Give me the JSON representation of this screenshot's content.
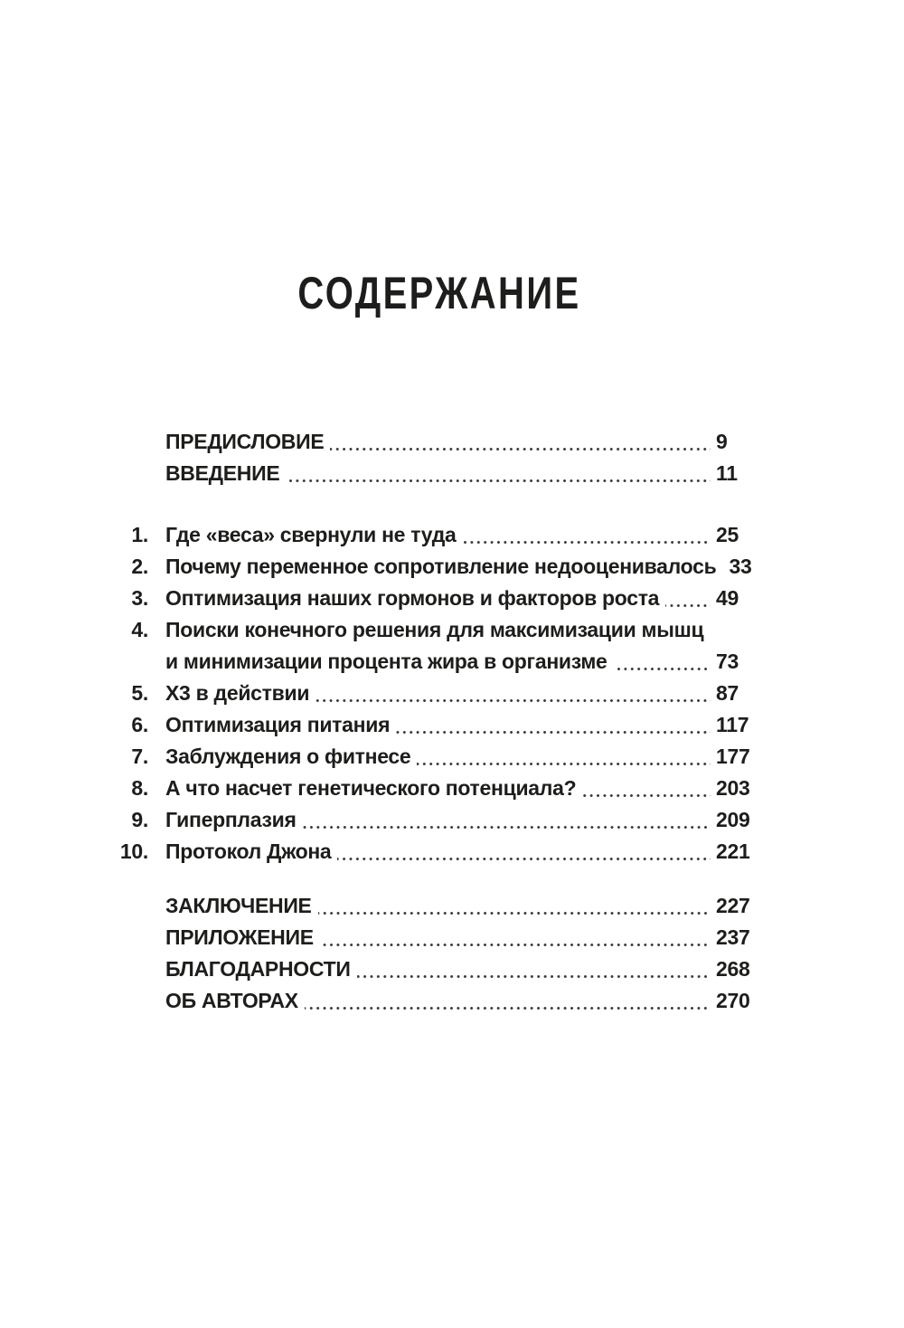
{
  "title": "СОДЕРЖАНИЕ",
  "toc": {
    "front_matter": [
      {
        "label": "ПРЕДИСЛОВИЕ",
        "page": "9"
      },
      {
        "label": "ВВЕДЕНИЕ",
        "page": "11"
      }
    ],
    "chapters": [
      {
        "num": "1.",
        "label": "Где «веса» свернули не туда",
        "page": "25"
      },
      {
        "num": "2.",
        "label": "Почему переменное сопротивление недооценивалось",
        "page": "33"
      },
      {
        "num": "3.",
        "label": "Оптимизация наших гормонов и факторов роста",
        "page": "49"
      },
      {
        "num": "4.",
        "label": "Поиски конечного решения для максимизации мышц",
        "label_cont": "и минимизации процента жира в организме",
        "page": "73"
      },
      {
        "num": "5.",
        "label": "Х3 в действии",
        "page": "87"
      },
      {
        "num": "6.",
        "label": "Оптимизация питания",
        "page": "117"
      },
      {
        "num": "7.",
        "label": "Заблуждения о фитнесе",
        "page": "177"
      },
      {
        "num": "8.",
        "label": "А что насчет генетического потенциала?",
        "page": "203"
      },
      {
        "num": "9.",
        "label": "Гиперплазия",
        "page": "209"
      },
      {
        "num": "10.",
        "label": "Протокол Джона",
        "page": "221"
      }
    ],
    "back_matter": [
      {
        "label": "ЗАКЛЮЧЕНИЕ",
        "page": "227"
      },
      {
        "label": "ПРИЛОЖЕНИЕ",
        "page": "237"
      },
      {
        "label": "БЛАГОДАРНОСТИ",
        "page": "268"
      },
      {
        "label": "ОБ АВТОРАХ",
        "page": "270"
      }
    ]
  },
  "colors": {
    "background": "#ffffff",
    "text": "#1d1d1b",
    "dots": "#3a3a3a"
  }
}
